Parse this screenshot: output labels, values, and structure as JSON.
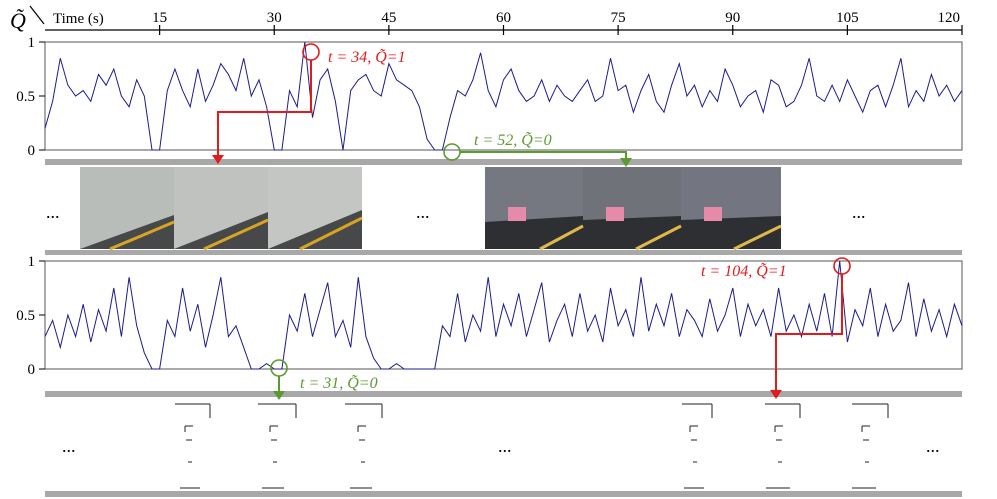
{
  "chart_data": [
    {
      "type": "line",
      "xlabel": "Time (s)",
      "ylabel": "Q̃",
      "xlim": [
        0,
        120
      ],
      "ylim": [
        0,
        1
      ],
      "x_ticks": [
        15,
        30,
        45,
        60,
        75,
        90,
        105,
        120
      ],
      "y_ticks": [
        "0",
        "0.5",
        "1"
      ],
      "annotations": [
        {
          "text": "t = 34, Q̃=1",
          "t": 34,
          "q": 1,
          "color": "#e31a1c"
        },
        {
          "text": "t = 52, Q̃=0",
          "t": 52,
          "q": 0,
          "color": "#5a9a2f"
        }
      ],
      "series": [
        {
          "color": "#1c1c8c",
          "x": [
            0,
            1,
            2,
            3,
            4,
            5,
            6,
            7,
            8,
            9,
            10,
            11,
            12,
            13,
            14,
            15,
            16,
            17,
            18,
            19,
            20,
            21,
            22,
            23,
            24,
            25,
            26,
            27,
            28,
            29,
            30,
            31,
            32,
            33,
            34,
            35,
            36,
            37,
            38,
            39,
            40,
            41,
            42,
            43,
            44,
            45,
            46,
            47,
            48,
            49,
            50,
            51,
            52,
            53,
            54,
            55,
            56,
            57,
            58,
            59,
            60,
            61,
            62,
            63,
            64,
            65,
            66,
            67,
            68,
            69,
            70,
            71,
            72,
            73,
            74,
            75,
            76,
            77,
            78,
            79,
            80,
            81,
            82,
            83,
            84,
            85,
            86,
            87,
            88,
            89,
            90,
            91,
            92,
            93,
            94,
            95,
            96,
            97,
            98,
            99,
            100,
            101,
            102,
            103,
            104,
            105,
            106,
            107,
            108,
            109,
            110,
            111,
            112,
            113,
            114,
            115,
            116,
            117,
            118,
            119,
            120
          ],
          "y": [
            0.2,
            0.45,
            0.85,
            0.6,
            0.5,
            0.55,
            0.45,
            0.7,
            0.6,
            0.75,
            0.5,
            0.4,
            0.65,
            0.5,
            0.0,
            0.0,
            0.55,
            0.75,
            0.55,
            0.4,
            0.75,
            0.45,
            0.6,
            0.8,
            0.7,
            0.55,
            0.85,
            0.5,
            0.65,
            0.4,
            0.0,
            0.0,
            0.55,
            0.4,
            1.0,
            0.3,
            0.65,
            0.75,
            0.45,
            0.0,
            0.55,
            0.65,
            0.7,
            0.55,
            0.5,
            0.8,
            0.65,
            0.6,
            0.55,
            0.4,
            0.1,
            0.0,
            0.0,
            0.3,
            0.55,
            0.5,
            0.65,
            0.9,
            0.55,
            0.4,
            0.65,
            0.75,
            0.55,
            0.45,
            0.5,
            0.65,
            0.45,
            0.6,
            0.5,
            0.45,
            0.55,
            0.65,
            0.45,
            0.5,
            0.85,
            0.55,
            0.6,
            0.35,
            0.55,
            0.7,
            0.45,
            0.35,
            0.6,
            0.8,
            0.5,
            0.6,
            0.4,
            0.55,
            0.45,
            0.75,
            0.6,
            0.4,
            0.5,
            0.55,
            0.35,
            0.65,
            0.6,
            0.4,
            0.45,
            0.6,
            0.85,
            0.5,
            0.45,
            0.6,
            0.45,
            0.65,
            0.5,
            0.35,
            0.55,
            0.6,
            0.4,
            0.6,
            0.85,
            0.4,
            0.55,
            0.45,
            0.7,
            0.5,
            0.6,
            0.45,
            0.55
          ]
        }
      ]
    },
    {
      "type": "line",
      "xlim": [
        0,
        120
      ],
      "ylim": [
        0,
        1
      ],
      "y_ticks": [
        "0",
        "0.5",
        "1"
      ],
      "annotations": [
        {
          "text": "t = 104, Q̃=1",
          "t": 104,
          "q": 1,
          "color": "#e31a1c"
        },
        {
          "text": "t = 31, Q̃=0",
          "t": 31,
          "q": 0,
          "color": "#5a9a2f"
        }
      ],
      "series": [
        {
          "color": "#1c1c8c",
          "x": [
            0,
            1,
            2,
            3,
            4,
            5,
            6,
            7,
            8,
            9,
            10,
            11,
            12,
            13,
            14,
            15,
            16,
            17,
            18,
            19,
            20,
            21,
            22,
            23,
            24,
            25,
            26,
            27,
            28,
            29,
            30,
            31,
            32,
            33,
            34,
            35,
            36,
            37,
            38,
            39,
            40,
            41,
            42,
            43,
            44,
            45,
            46,
            47,
            48,
            49,
            50,
            51,
            52,
            53,
            54,
            55,
            56,
            57,
            58,
            59,
            60,
            61,
            62,
            63,
            64,
            65,
            66,
            67,
            68,
            69,
            70,
            71,
            72,
            73,
            74,
            75,
            76,
            77,
            78,
            79,
            80,
            81,
            82,
            83,
            84,
            85,
            86,
            87,
            88,
            89,
            90,
            91,
            92,
            93,
            94,
            95,
            96,
            97,
            98,
            99,
            100,
            101,
            102,
            103,
            104,
            105,
            106,
            107,
            108,
            109,
            110,
            111,
            112,
            113,
            114,
            115,
            116,
            117,
            118,
            119,
            120
          ],
          "y": [
            0.3,
            0.45,
            0.2,
            0.5,
            0.3,
            0.6,
            0.25,
            0.55,
            0.35,
            0.75,
            0.3,
            0.85,
            0.4,
            0.15,
            0.0,
            0.0,
            0.45,
            0.3,
            0.75,
            0.35,
            0.6,
            0.2,
            0.5,
            0.85,
            0.3,
            0.4,
            0.2,
            0.0,
            0.0,
            0.05,
            0.0,
            0.0,
            0.5,
            0.35,
            0.7,
            0.3,
            0.55,
            0.8,
            0.3,
            0.45,
            0.2,
            0.85,
            0.3,
            0.1,
            0.0,
            0.0,
            0.05,
            0.0,
            0.0,
            0.0,
            0.0,
            0.0,
            0.4,
            0.3,
            0.7,
            0.25,
            0.5,
            0.35,
            0.85,
            0.3,
            0.6,
            0.4,
            0.7,
            0.3,
            0.55,
            0.8,
            0.25,
            0.45,
            0.6,
            0.3,
            0.7,
            0.35,
            0.5,
            0.25,
            0.75,
            0.4,
            0.55,
            0.3,
            0.85,
            0.35,
            0.6,
            0.4,
            0.7,
            0.3,
            0.55,
            0.45,
            0.3,
            0.65,
            0.35,
            0.5,
            0.75,
            0.3,
            0.6,
            0.4,
            0.55,
            0.3,
            0.75,
            0.35,
            0.5,
            0.3,
            0.6,
            0.35,
            0.7,
            0.3,
            1.0,
            0.25,
            0.55,
            0.4,
            0.75,
            0.3,
            0.6,
            0.35,
            0.45,
            0.8,
            0.3,
            0.65,
            0.35,
            0.55,
            0.3,
            0.6,
            0.4
          ]
        }
      ]
    }
  ],
  "ellipsis": "..."
}
